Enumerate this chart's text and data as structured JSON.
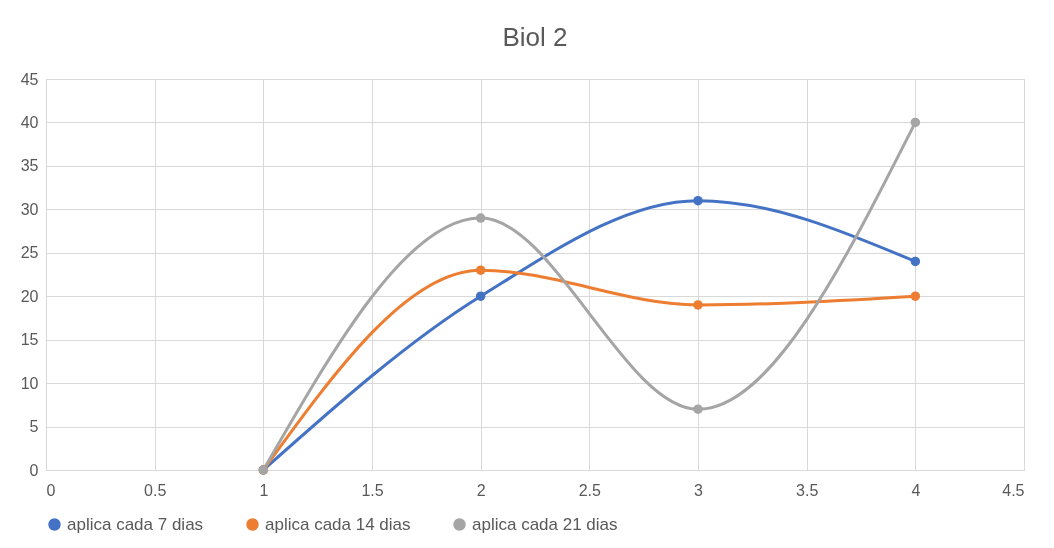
{
  "chart_data": {
    "type": "line",
    "title": "Biol 2",
    "x": [
      1,
      2,
      3,
      4
    ],
    "series": [
      {
        "name": "aplica cada 7 dias",
        "color": "#4472c4",
        "values": [
          0,
          20,
          31,
          24
        ]
      },
      {
        "name": "aplica cada 14 dias",
        "color": "#ed7d31",
        "values": [
          0,
          23,
          19,
          20
        ]
      },
      {
        "name": "aplica cada 21 dias",
        "color": "#a5a5a5",
        "values": [
          0,
          29,
          7,
          40
        ]
      }
    ],
    "xlim": [
      0,
      4.5
    ],
    "xticks": [
      0,
      0.5,
      1,
      1.5,
      2,
      2.5,
      3,
      3.5,
      4,
      4.5
    ],
    "ylim": [
      0,
      45
    ],
    "yticks": [
      0,
      5,
      10,
      15,
      20,
      25,
      30,
      35,
      40,
      45
    ],
    "grid": true,
    "legend": "bottom",
    "marker": "circle",
    "line_style": "solid"
  }
}
